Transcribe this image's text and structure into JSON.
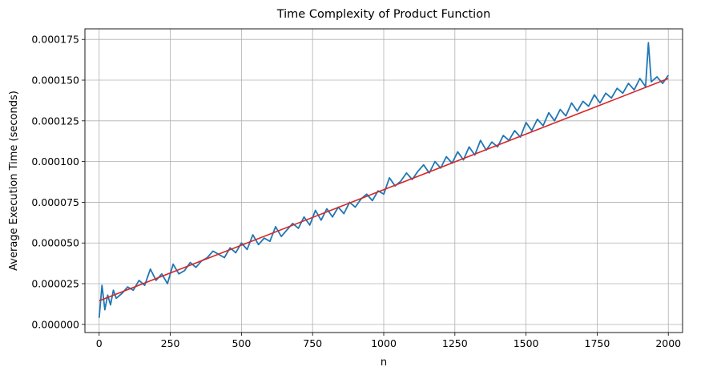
{
  "chart_data": {
    "type": "line",
    "title": "Time Complexity of Product Function",
    "xlabel": "n",
    "ylabel": "Average Execution Time (seconds)",
    "xlim": [
      -50,
      2050
    ],
    "ylim": [
      -5e-06,
      0.0001815
    ],
    "x_ticks": [
      0,
      250,
      500,
      750,
      1000,
      1250,
      1500,
      1750,
      2000
    ],
    "x_tick_labels": [
      "0",
      "250",
      "500",
      "750",
      "1000",
      "1250",
      "1500",
      "1750",
      "2000"
    ],
    "y_ticks": [
      0,
      2.5e-05,
      5e-05,
      7.5e-05,
      0.0001,
      0.000125,
      0.00015,
      0.000175
    ],
    "y_tick_labels": [
      "0.000000",
      "0.000025",
      "0.000050",
      "0.000075",
      "0.000100",
      "0.000125",
      "0.000150",
      "0.000175"
    ],
    "grid": true,
    "series": [
      {
        "kind": "measured",
        "color": "#1f77b4",
        "x": [
          0,
          10,
          20,
          30,
          40,
          50,
          60,
          80,
          100,
          120,
          140,
          160,
          180,
          200,
          220,
          240,
          260,
          280,
          300,
          320,
          340,
          360,
          380,
          400,
          420,
          440,
          460,
          480,
          500,
          520,
          540,
          560,
          580,
          600,
          620,
          640,
          660,
          680,
          700,
          720,
          740,
          760,
          780,
          800,
          820,
          840,
          860,
          880,
          900,
          920,
          940,
          960,
          980,
          1000,
          1020,
          1040,
          1060,
          1080,
          1100,
          1120,
          1140,
          1160,
          1180,
          1200,
          1220,
          1240,
          1260,
          1280,
          1300,
          1320,
          1340,
          1360,
          1380,
          1400,
          1420,
          1440,
          1460,
          1480,
          1500,
          1520,
          1540,
          1560,
          1580,
          1600,
          1620,
          1640,
          1660,
          1680,
          1700,
          1720,
          1740,
          1760,
          1780,
          1800,
          1820,
          1840,
          1860,
          1880,
          1900,
          1920,
          1930,
          1940,
          1960,
          1980,
          2000
        ],
        "y": [
          4e-06,
          2.4e-05,
          9e-06,
          1.8e-05,
          1.2e-05,
          2.1e-05,
          1.6e-05,
          1.9e-05,
          2.3e-05,
          2.1e-05,
          2.7e-05,
          2.4e-05,
          3.4e-05,
          2.7e-05,
          3.1e-05,
          2.5e-05,
          3.7e-05,
          3.1e-05,
          3.3e-05,
          3.8e-05,
          3.5e-05,
          3.9e-05,
          4.1e-05,
          4.5e-05,
          4.3e-05,
          4.1e-05,
          4.7e-05,
          4.4e-05,
          5e-05,
          4.6e-05,
          5.5e-05,
          4.9e-05,
          5.3e-05,
          5.1e-05,
          6e-05,
          5.4e-05,
          5.8e-05,
          6.2e-05,
          5.9e-05,
          6.6e-05,
          6.1e-05,
          7e-05,
          6.4e-05,
          7.1e-05,
          6.6e-05,
          7.2e-05,
          6.8e-05,
          7.5e-05,
          7.2e-05,
          7.7e-05,
          8e-05,
          7.6e-05,
          8.2e-05,
          8e-05,
          9e-05,
          8.5e-05,
          8.8e-05,
          9.3e-05,
          8.9e-05,
          9.4e-05,
          9.8e-05,
          9.3e-05,
          0.0001,
          9.6e-05,
          0.000103,
          9.9e-05,
          0.000106,
          0.000101,
          0.000109,
          0.000104,
          0.000113,
          0.000107,
          0.000112,
          0.000109,
          0.000116,
          0.000113,
          0.000119,
          0.000115,
          0.000124,
          0.000119,
          0.000126,
          0.000122,
          0.00013,
          0.000125,
          0.000132,
          0.000128,
          0.000136,
          0.000131,
          0.000137,
          0.000134,
          0.000141,
          0.000136,
          0.000142,
          0.000139,
          0.000145,
          0.000142,
          0.000148,
          0.000144,
          0.000151,
          0.000146,
          0.000173,
          0.000149,
          0.000152,
          0.000148,
          0.000153
        ]
      },
      {
        "kind": "fit",
        "color": "#d62728",
        "x": [
          0,
          2000
        ],
        "y": [
          1.45e-05,
          0.000151
        ]
      }
    ]
  }
}
